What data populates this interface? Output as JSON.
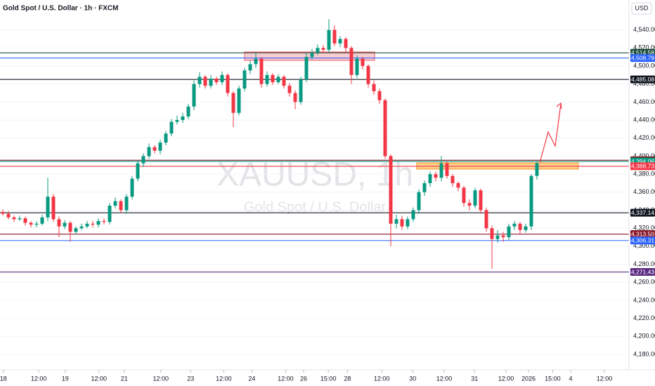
{
  "chart_data": {
    "type": "candlestick",
    "title": "Gold Spot / U.S. Dollar · 1h · FXCM",
    "watermark": [
      "XAUUSD, 1h",
      "Gold Spot / U.S. Dollar"
    ],
    "currency": "USD",
    "up_color": "#089981",
    "down_color": "#f23645",
    "ylim": [
      4168.3,
      4573.2
    ],
    "yticks": [
      {
        "value": 4180,
        "label": "4,180.00"
      },
      {
        "value": 4200,
        "label": "4,200.00"
      },
      {
        "value": 4220,
        "label": "4,220.00"
      },
      {
        "value": 4240,
        "label": "4,240.00"
      },
      {
        "value": 4260,
        "label": "4,260.00"
      },
      {
        "value": 4280,
        "label": "4,280.00"
      },
      {
        "value": 4300,
        "label": "4,300.00"
      },
      {
        "value": 4320,
        "label": "4,320.00"
      },
      {
        "value": 4340,
        "label": "4,340.00"
      },
      {
        "value": 4360,
        "label": "4,360.00"
      },
      {
        "value": 4380,
        "label": "4,380.00"
      },
      {
        "value": 4400,
        "label": "4,400.00"
      },
      {
        "value": 4420,
        "label": "4,420.00"
      },
      {
        "value": 4440,
        "label": "4,440.00"
      },
      {
        "value": 4460,
        "label": "4,460.00"
      },
      {
        "value": 4480,
        "label": "4,480.00"
      },
      {
        "value": 4500,
        "label": "4,500.00"
      },
      {
        "value": 4520,
        "label": "4,520.00"
      },
      {
        "value": 4540,
        "label": "4,540.00"
      }
    ],
    "xlim": [
      0,
      112
    ],
    "xticks": [
      {
        "value": 0.6,
        "label": "18"
      },
      {
        "value": 6.9,
        "label": "12:00"
      },
      {
        "value": 11.6,
        "label": "19"
      },
      {
        "value": 17.6,
        "label": "12:00"
      },
      {
        "value": 22.1,
        "label": "21"
      },
      {
        "value": 28.6,
        "label": "12:00"
      },
      {
        "value": 33.9,
        "label": "23"
      },
      {
        "value": 39.8,
        "label": "12:00"
      },
      {
        "value": 44.8,
        "label": "24"
      },
      {
        "value": 50.8,
        "label": "12:00"
      },
      {
        "value": 54,
        "label": "26"
      },
      {
        "value": 58.4,
        "label": "15:00"
      },
      {
        "value": 61.8,
        "label": "28"
      },
      {
        "value": 67.9,
        "label": "12:00"
      },
      {
        "value": 73.4,
        "label": "30"
      },
      {
        "value": 79,
        "label": "12:00"
      },
      {
        "value": 84.4,
        "label": "31"
      },
      {
        "value": 90,
        "label": "12:00"
      },
      {
        "value": 94,
        "label": "2026"
      },
      {
        "value": 98.3,
        "label": "15:00"
      },
      {
        "value": 101.5,
        "label": "4"
      },
      {
        "value": 107.5,
        "label": "12:00"
      }
    ],
    "levels": [
      {
        "value": 4514.58,
        "label": "4,514.58",
        "color": "#1e4d3a"
      },
      {
        "value": 4508.78,
        "label": "4,508.78",
        "color": "#2962ff"
      },
      {
        "value": 4485.08,
        "label": "4,485.08",
        "color": "#131722"
      },
      {
        "value": 4395.39,
        "label": "4,395.39",
        "color": "#801922"
      },
      {
        "value": 4394.06,
        "label": "4,394.06",
        "color": "#089981"
      },
      {
        "value": 4388.73,
        "label": "4,388.73",
        "color": "#f23645"
      },
      {
        "value": 4337.14,
        "label": "4,337.14",
        "color": "#131722"
      },
      {
        "value": 4313.5,
        "label": "4,313.50",
        "color": "#8b1a2b"
      },
      {
        "value": 4306.31,
        "label": "4,306.31",
        "color": "#2962ff"
      },
      {
        "value": 4271.43,
        "label": "4,271.43",
        "color": "#5b2c83"
      }
    ],
    "open": [
      4338,
      4336,
      4332,
      4330,
      4331,
      4326,
      4324,
      4325,
      4332,
      4355,
      4330,
      4322,
      4326,
      4316,
      4320,
      4322,
      4325,
      4324,
      4328,
      4327,
      4345,
      4350,
      4340,
      4355,
      4375,
      4392,
      4400,
      4410,
      4406,
      4415,
      4425,
      4438,
      4440,
      4444,
      4455,
      4480,
      4488,
      4478,
      4486,
      4482,
      4490,
      4470,
      4448,
      4475,
      4495,
      4502,
      4508,
      4480,
      4490,
      4482,
      4488,
      4478,
      4470,
      4460,
      4485,
      4510,
      4515,
      4520,
      4518,
      4540,
      4525,
      4530,
      4520,
      4490,
      4508,
      4500,
      4480,
      4472,
      4462,
      4400,
      4325,
      4330,
      4322,
      4330,
      4340,
      4360,
      4370,
      4380,
      4376,
      4392,
      4378,
      4370,
      4365,
      4348,
      4345,
      4362,
      4340,
      4320,
      4308,
      4312,
      4310,
      4322,
      4325,
      4318,
      4322,
      4378
    ],
    "high": [
      4341,
      4339,
      4334,
      4334,
      4333,
      4328,
      4328,
      4335,
      4376,
      4358,
      4333,
      4329,
      4328,
      4322,
      4325,
      4328,
      4328,
      4331,
      4331,
      4348,
      4354,
      4352,
      4358,
      4378,
      4395,
      4403,
      4414,
      4412,
      4418,
      4428,
      4441,
      4445,
      4448,
      4458,
      4484,
      4493,
      4490,
      4490,
      4488,
      4494,
      4492,
      4472,
      4478,
      4498,
      4506,
      4515,
      4510,
      4494,
      4492,
      4491,
      4490,
      4481,
      4473,
      4488,
      4514,
      4519,
      4524,
      4523,
      4552,
      4545,
      4533,
      4532,
      4522,
      4512,
      4510,
      4502,
      4484,
      4475,
      4464,
      4402,
      4335,
      4334,
      4333,
      4343,
      4363,
      4373,
      4383,
      4383,
      4400,
      4394,
      4380,
      4372,
      4367,
      4352,
      4365,
      4364,
      4343,
      4323,
      4318,
      4316,
      4325,
      4328,
      4327,
      4325,
      4380,
      4394
    ],
    "low": [
      4334,
      4330,
      4327,
      4328,
      4323,
      4321,
      4321,
      4323,
      4328,
      4327,
      4310,
      4319,
      4305,
      4313,
      4318,
      4320,
      4321,
      4321,
      4324,
      4324,
      4342,
      4337,
      4336,
      4352,
      4372,
      4388,
      4397,
      4403,
      4402,
      4412,
      4422,
      4435,
      4437,
      4441,
      4451,
      4476,
      4475,
      4475,
      4479,
      4479,
      4466,
      4432,
      4445,
      4472,
      4491,
      4498,
      4476,
      4477,
      4479,
      4480,
      4475,
      4466,
      4452,
      4457,
      4482,
      4507,
      4512,
      4514,
      4515,
      4522,
      4521,
      4516,
      4480,
      4487,
      4496,
      4476,
      4468,
      4458,
      4397,
      4300,
      4320,
      4318,
      4319,
      4327,
      4336,
      4356,
      4366,
      4372,
      4372,
      4375,
      4366,
      4361,
      4344,
      4340,
      4342,
      4336,
      4316,
      4275,
      4304,
      4305,
      4307,
      4318,
      4314,
      4315,
      4318,
      4374
    ],
    "close": [
      4336,
      4332,
      4330,
      4331,
      4326,
      4324,
      4325,
      4332,
      4355,
      4330,
      4322,
      4326,
      4316,
      4320,
      4322,
      4325,
      4324,
      4328,
      4327,
      4345,
      4350,
      4340,
      4355,
      4375,
      4392,
      4400,
      4410,
      4406,
      4415,
      4425,
      4438,
      4440,
      4444,
      4455,
      4480,
      4488,
      4478,
      4486,
      4482,
      4490,
      4470,
      4448,
      4475,
      4495,
      4502,
      4508,
      4480,
      4490,
      4482,
      4488,
      4478,
      4470,
      4460,
      4485,
      4510,
      4515,
      4520,
      4518,
      4540,
      4525,
      4530,
      4520,
      4490,
      4508,
      4500,
      4480,
      4472,
      4462,
      4400,
      4325,
      4330,
      4322,
      4330,
      4340,
      4360,
      4370,
      4380,
      4376,
      4392,
      4378,
      4370,
      4365,
      4348,
      4345,
      4362,
      4340,
      4320,
      4308,
      4312,
      4310,
      4322,
      4325,
      4318,
      4322,
      4378,
      4392
    ]
  }
}
